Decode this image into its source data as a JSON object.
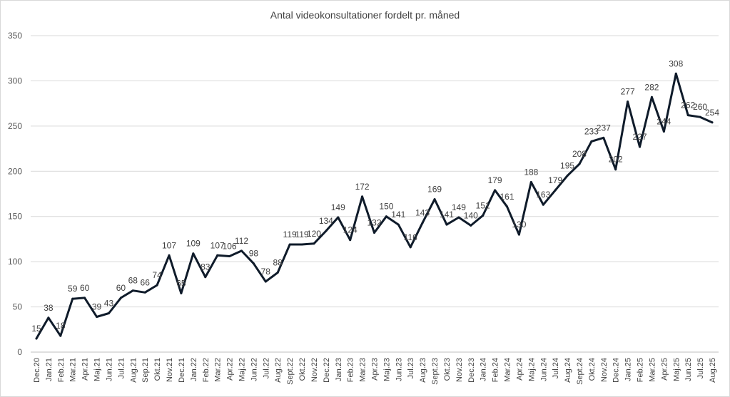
{
  "chart_data": {
    "type": "line",
    "title": "Antal videokonsultationer  fordelt pr. måned",
    "xlabel": "",
    "ylabel": "",
    "ylim": [
      0,
      350
    ],
    "yticks": [
      0,
      50,
      100,
      150,
      200,
      250,
      300,
      350
    ],
    "grid": true,
    "categories": [
      "Dec.20",
      "Jan.21",
      "Feb.21",
      "Mar.21",
      "Apr.21",
      "Maj.21",
      "Jun.21",
      "Jul.21",
      "Aug.21",
      "Sep.21",
      "Okt.21",
      "Nov.21",
      "Dec.21",
      "Jan.22",
      "Feb.22",
      "Mar.22",
      "Apr.22",
      "Maj.22",
      "Jun.22",
      "Jul.22",
      "Aug.22",
      "Sept.22",
      "Okt.22",
      "Nov.22",
      "Dec.22",
      "Jan.23",
      "Feb.23",
      "Mar.23",
      "Apr.23",
      "Maj.23",
      "Jun.23",
      "Jul.23",
      "Aug.23",
      "Sept.23",
      "Okt.23",
      "Nov.23",
      "Dec.23",
      "Jan.24",
      "Feb.24",
      "Mar.24",
      "Apr.24",
      "Maj.24",
      "Jun.24",
      "Jul.24",
      "Aug.24",
      "Sept.24",
      "Okt.24",
      "Nov.24",
      "Dec.24",
      "Jan.25",
      "Feb.25",
      "Mar.25",
      "Apr.25",
      "Maj.25",
      "Jun.25",
      "Jul.25",
      "Aug.25"
    ],
    "values": [
      15,
      38,
      18,
      59,
      60,
      39,
      43,
      60,
      68,
      66,
      74,
      107,
      65,
      109,
      83,
      107,
      106,
      112,
      98,
      78,
      88,
      119,
      119,
      120,
      134,
      149,
      124,
      172,
      132,
      150,
      141,
      116,
      143,
      169,
      141,
      149,
      140,
      151,
      179,
      161,
      130,
      188,
      163,
      179,
      195,
      208,
      233,
      237,
      202,
      277,
      227,
      282,
      244,
      308,
      262,
      260,
      254
    ],
    "series_color": "#0f1b2a"
  }
}
